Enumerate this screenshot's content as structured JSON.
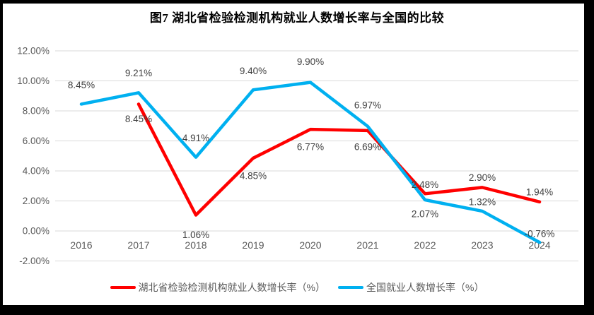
{
  "title": "图7 湖北省检验检测机构就业人数增长率与全国的比较",
  "colors": {
    "hubei_series": "#ff0000",
    "national_series": "#00b0f0",
    "gridline": "#d9d9d9",
    "axis_text": "#595959",
    "data_label_text": "#404040",
    "frame": "#000000"
  },
  "chart_data": {
    "type": "line",
    "categories": [
      "2016",
      "2017",
      "2018",
      "2019",
      "2020",
      "2021",
      "2022",
      "2023",
      "2024"
    ],
    "series": [
      {
        "name": "湖北省检验检测机构就业人数增长率（%）",
        "color": "#ff0000",
        "values": [
          null,
          8.45,
          1.06,
          4.85,
          6.77,
          6.69,
          2.48,
          2.9,
          1.94
        ],
        "labels": [
          null,
          "8.45%",
          "1.06%",
          "4.85%",
          "6.77%",
          "6.69%",
          "2.48%",
          "2.90%",
          "1.94%"
        ],
        "label_dy": [
          0,
          21,
          28,
          25,
          25,
          23,
          -13,
          -14,
          -14
        ]
      },
      {
        "name": "全国就业人数增长率（%）",
        "color": "#00b0f0",
        "values": [
          8.45,
          9.21,
          4.91,
          9.4,
          9.9,
          6.97,
          2.07,
          1.32,
          -0.76
        ],
        "labels": [
          "8.45%",
          "9.21%",
          "4.91%",
          "9.40%",
          "9.90%",
          "6.97%",
          "2.07%",
          "1.32%",
          "-0.76%"
        ],
        "label_dy": [
          -27,
          -28,
          -27,
          -27,
          -29,
          -30,
          20,
          -13,
          -12
        ]
      }
    ],
    "ylim": [
      -2,
      12
    ],
    "y_ticks": [
      "12.00%",
      "10.00%",
      "8.00%",
      "6.00%",
      "4.00%",
      "2.00%",
      "0.00%",
      "-2.00%"
    ],
    "grid": true,
    "legend_position": "bottom"
  }
}
